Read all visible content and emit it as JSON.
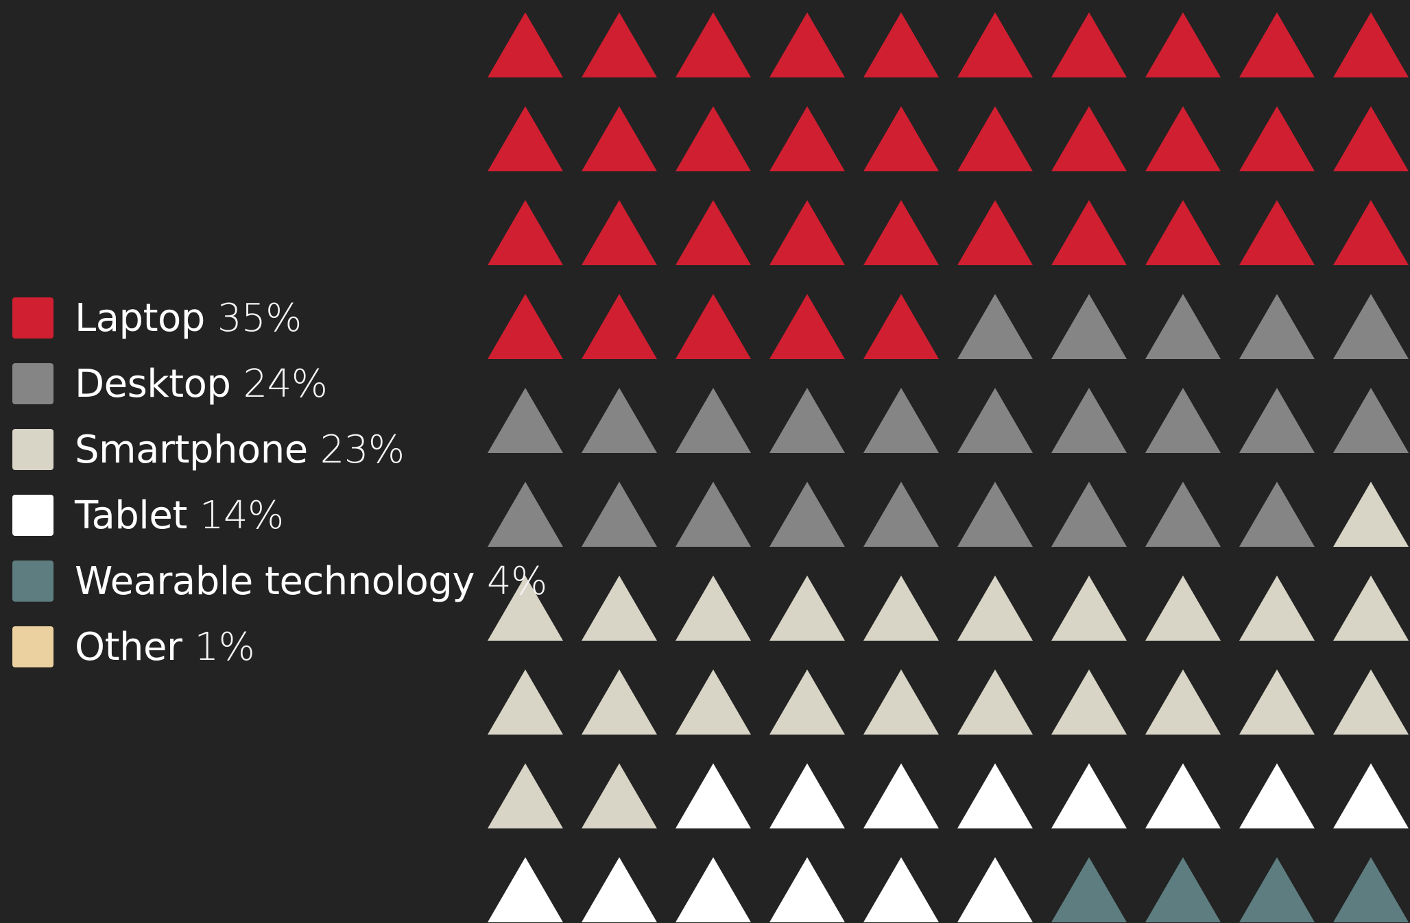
{
  "chart_data": {
    "type": "waffle",
    "grid": {
      "rows": 10,
      "cols": 10
    },
    "marker_shape": "triangle",
    "legend_position": "left",
    "series": [
      {
        "name": "Laptop",
        "value": 35,
        "value_label": "35%",
        "color": "#d01f31"
      },
      {
        "name": "Desktop",
        "value": 24,
        "value_label": "24%",
        "color": "#858585"
      },
      {
        "name": "Smartphone",
        "value": 23,
        "value_label": "23%",
        "color": "#d8d4c6"
      },
      {
        "name": "Tablet",
        "value": 14,
        "value_label": "14%",
        "color": "#ffffff"
      },
      {
        "name": "Wearable technology",
        "value": 4,
        "value_label": "4%",
        "color": "#5e7d80"
      },
      {
        "name": "Other",
        "value": 1,
        "value_label": "1%",
        "color": "#ebd1a0"
      }
    ]
  },
  "colors": {
    "background": "#232323",
    "text": "#ffffff"
  }
}
